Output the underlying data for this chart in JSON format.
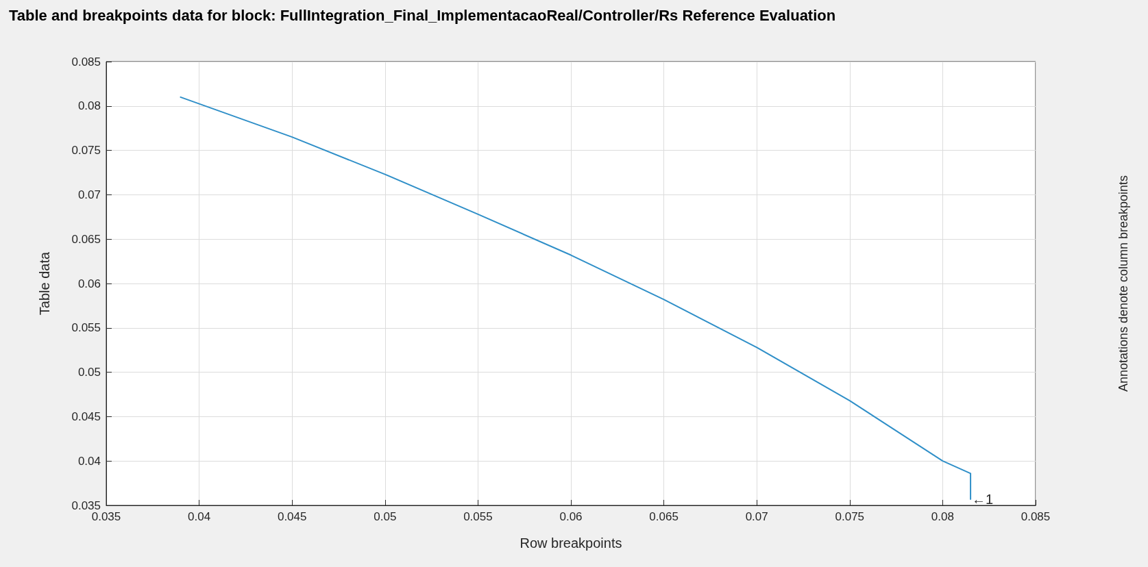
{
  "chart_data": {
    "type": "line",
    "title": "Table and breakpoints data for block: FullIntegration_Final_ImplementacaoReal/Controller/Rs Reference Evaluation",
    "xlabel": "Row breakpoints",
    "ylabel": "Table data",
    "x": [
      0.039,
      0.045,
      0.05,
      0.055,
      0.06,
      0.065,
      0.07,
      0.075,
      0.08,
      0.0815,
      0.0815
    ],
    "series": [
      {
        "color": "#2f8fc8",
        "values": [
          0.081,
          0.0765,
          0.0723,
          0.0678,
          0.0632,
          0.0582,
          0.0528,
          0.0468,
          0.04,
          0.0386,
          0.0357
        ]
      }
    ],
    "xlim": [
      0.035,
      0.085
    ],
    "xticks": [
      0.035,
      0.04,
      0.045,
      0.05,
      0.055,
      0.06,
      0.065,
      0.07,
      0.075,
      0.08,
      0.085
    ],
    "ylim": [
      0.035,
      0.085
    ],
    "yticks": [
      0.035,
      0.04,
      0.045,
      0.05,
      0.055,
      0.06,
      0.065,
      0.07,
      0.075,
      0.08,
      0.085
    ],
    "annotations": [
      {
        "text": "←1",
        "x": 0.0815,
        "y": 0.0357
      },
      "Annotations denote column breakpoints"
    ],
    "grid": true,
    "marker": "none",
    "line_style": "solid"
  }
}
